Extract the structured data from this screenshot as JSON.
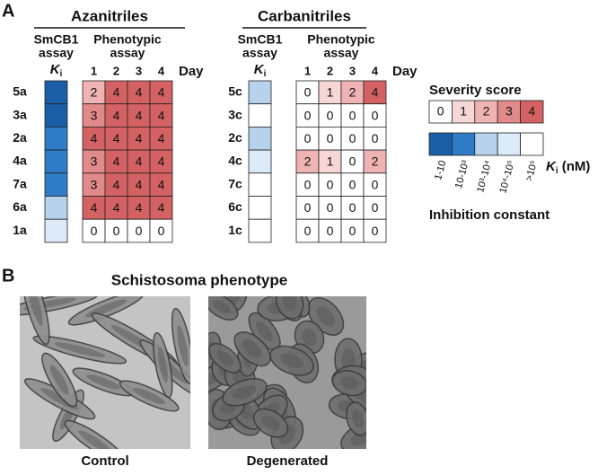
{
  "panel_a": {
    "label": "A",
    "groups": [
      {
        "title": "Azanitriles",
        "ki_header": [
          "SmCB1",
          "assay"
        ],
        "pheno_header": [
          "Phenotypic",
          "assay"
        ],
        "ki_label": [
          "K",
          "i"
        ],
        "days": [
          1,
          2,
          3,
          4
        ],
        "day_label": "Day",
        "rows": [
          {
            "compound": "5a",
            "ki_color": "#1a5ea8",
            "scores": [
              2,
              4,
              4,
              4
            ]
          },
          {
            "compound": "3a",
            "ki_color": "#1a5ea8",
            "scores": [
              3,
              4,
              4,
              4
            ]
          },
          {
            "compound": "2a",
            "ki_color": "#2d7cc5",
            "scores": [
              4,
              4,
              4,
              4
            ]
          },
          {
            "compound": "4a",
            "ki_color": "#2d7cc5",
            "scores": [
              3,
              4,
              4,
              4
            ]
          },
          {
            "compound": "7a",
            "ki_color": "#2d7cc5",
            "scores": [
              3,
              4,
              4,
              4
            ]
          },
          {
            "compound": "6a",
            "ki_color": "#b7d3ec",
            "scores": [
              4,
              4,
              4,
              4
            ]
          },
          {
            "compound": "1a",
            "ki_color": "#ddeaf7",
            "scores": [
              0,
              0,
              0,
              0
            ]
          }
        ]
      },
      {
        "title": "Carbanitriles",
        "ki_header": [
          "SmCB1",
          "assay"
        ],
        "pheno_header": [
          "Phenotypic",
          "assay"
        ],
        "ki_label": [
          "K",
          "i"
        ],
        "days": [
          1,
          2,
          3,
          4
        ],
        "day_label": "Day",
        "rows": [
          {
            "compound": "5c",
            "ki_color": "#b7d3ec",
            "scores": [
              0,
              1,
              2,
              4
            ]
          },
          {
            "compound": "3c",
            "ki_color": "#ffffff",
            "scores": [
              0,
              0,
              0,
              0
            ]
          },
          {
            "compound": "2c",
            "ki_color": "#b7d3ec",
            "scores": [
              0,
              0,
              0,
              0
            ]
          },
          {
            "compound": "4c",
            "ki_color": "#ddeaf7",
            "scores": [
              2,
              1,
              0,
              2
            ]
          },
          {
            "compound": "7c",
            "ki_color": "#ffffff",
            "scores": [
              0,
              0,
              0,
              0
            ]
          },
          {
            "compound": "6c",
            "ki_color": "#ffffff",
            "scores": [
              0,
              0,
              0,
              0
            ]
          },
          {
            "compound": "1c",
            "ki_color": "#ffffff",
            "scores": [
              0,
              0,
              0,
              0
            ]
          }
        ]
      }
    ],
    "legend": {
      "severity_title": "Severity score",
      "severity_levels": [
        0,
        1,
        2,
        3,
        4
      ],
      "severity_colors": [
        "#ffffff",
        "#f7d6d6",
        "#efb3b3",
        "#e28989",
        "#d46262"
      ],
      "ki_classes": [
        {
          "label": "1-10",
          "color": "#1a5ea8"
        },
        {
          "label": "10-10³",
          "color": "#2d7cc5"
        },
        {
          "label": "10³-10⁴",
          "color": "#b7d3ec"
        },
        {
          "label": "10⁴-10⁵",
          "color": "#ddeaf7"
        },
        {
          "label": ">10⁵",
          "color": "#ffffff"
        }
      ],
      "ki_unit": [
        "K",
        "i",
        " (nM)"
      ],
      "ki_title": "Inhibition constant"
    }
  },
  "panel_b": {
    "label": "B",
    "title": "Schistosoma phenotype",
    "images": [
      {
        "caption": "Control"
      },
      {
        "caption": "Degenerated"
      }
    ]
  }
}
